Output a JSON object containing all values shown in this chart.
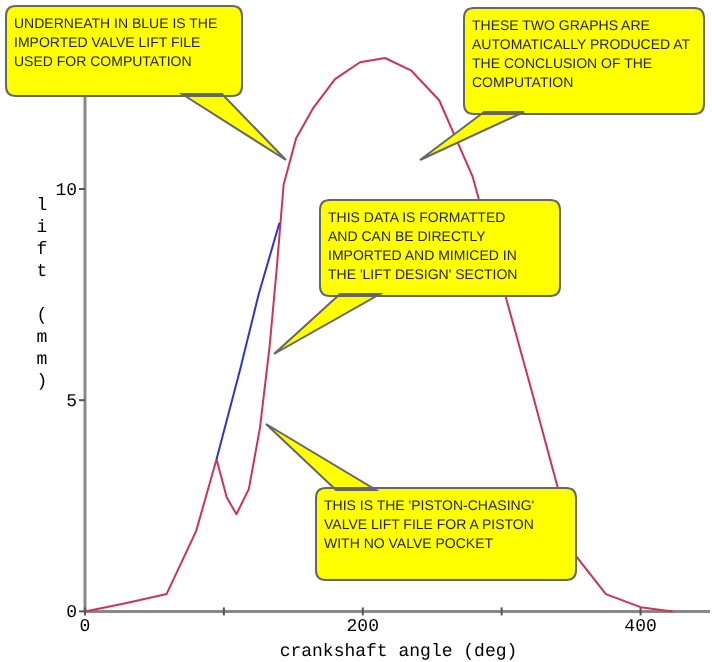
{
  "chart_data": {
    "type": "line",
    "xlabel": "crankshaft angle (deg)",
    "ylabel": "lift (mm)",
    "xlim": [
      0,
      450
    ],
    "ylim": [
      0,
      14
    ],
    "xticks": [
      0,
      {
        "value": 100,
        "label": null
      },
      200,
      {
        "value": 300,
        "label": null
      },
      400
    ],
    "yticks": [
      0,
      5,
      10
    ],
    "grid": false,
    "marker": "none",
    "line_style": "solid",
    "series": [
      {
        "color": "#cc3355",
        "x": [
          0,
          30,
          58.7,
          80,
          94.7,
          102,
          109,
          118,
          126,
          133,
          138,
          143,
          152,
          164,
          180,
          198,
          216,
          235,
          255,
          279,
          310,
          322.6,
          353.7,
          375,
          400,
          423
        ],
        "values": [
          0,
          0.2,
          0.41,
          1.9,
          3.6,
          2.7,
          2.3,
          2.9,
          4.35,
          6.3,
          8.1,
          10.1,
          11.2,
          11.9,
          12.6,
          13.0,
          13.1,
          12.8,
          12.1,
          10.3,
          6.6,
          5.1,
          1.3,
          0.41,
          0.1,
          0
        ]
      },
      {
        "color": "#3333cc",
        "x": [
          94.7,
          111.5,
          125,
          140
        ],
        "values": [
          3.6,
          5.7,
          7.5,
          9.2
        ]
      }
    ],
    "annotations": [
      "UNDERNEATH IN BLUE IS THE IMPORTED VALVE LIFT FILE USED FOR COMPUTATION",
      "THESE TWO GRAPHS ARE AUTOMATICALLY PRODUCED AT THE CONCLUSION OF THE COMPUTATION",
      "THIS DATA IS FORMATTED AND CAN BE DIRECTLY IMPORTED AND MIMICED IN THE 'LIFT DESIGN' SECTION",
      "THIS IS THE 'PISTON-CHASING' VALVE LIFT FILE FOR A PISTON WITH NO VALVE POCKET"
    ]
  }
}
